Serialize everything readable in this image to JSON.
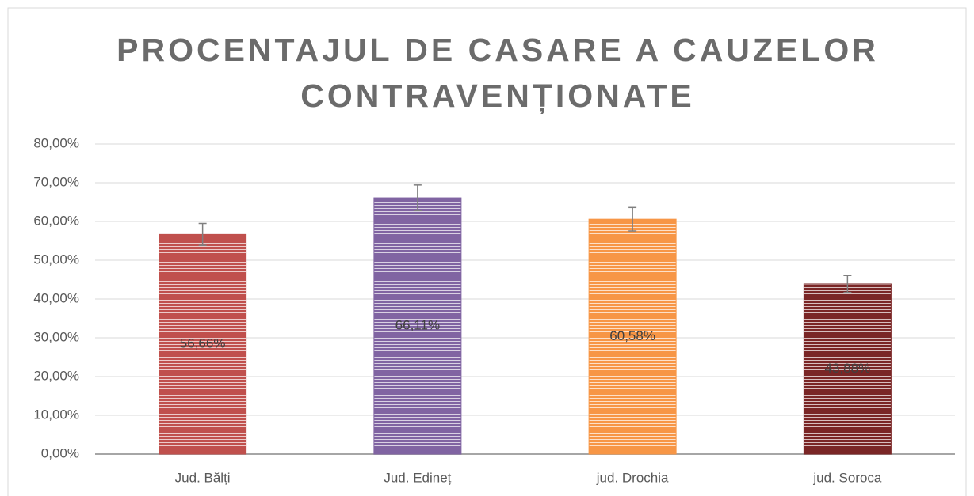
{
  "chart_data": {
    "type": "bar",
    "title": [
      "PROCENTAJUL DE CASARE A CAUZELOR",
      "CONTRAVENȚIONATE"
    ],
    "categories": [
      "Jud. Bălți",
      "Jud. Edineț",
      "jud. Drochia",
      "jud. Soroca"
    ],
    "values": [
      56.66,
      66.11,
      60.58,
      43.88
    ],
    "value_labels": [
      "56,66%",
      "66,11%",
      "60,58%",
      "43,88%"
    ],
    "errors": [
      2.83,
      3.31,
      3.03,
      2.19
    ],
    "colors": [
      "#c0504d",
      "#8064a2",
      "#f79646",
      "#7a2626"
    ],
    "ylim": [
      0,
      80
    ],
    "yticks": [
      {
        "value": 0,
        "label": "0,00%"
      },
      {
        "value": 10,
        "label": "10,00%"
      },
      {
        "value": 20,
        "label": "20,00%"
      },
      {
        "value": 30,
        "label": "30,00%"
      },
      {
        "value": 40,
        "label": "40,00%"
      },
      {
        "value": 50,
        "label": "50,00%"
      },
      {
        "value": 60,
        "label": "60,00%"
      },
      {
        "value": 70,
        "label": "70,00%"
      },
      {
        "value": 80,
        "label": "80,00%"
      }
    ],
    "grid": true
  }
}
